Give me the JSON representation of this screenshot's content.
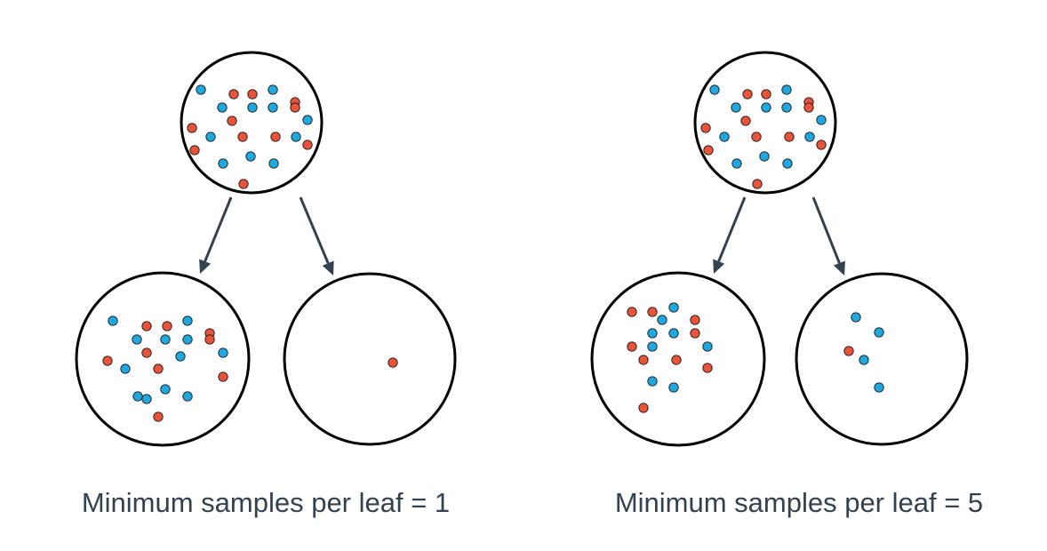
{
  "colors": {
    "class_red": "#e8533a",
    "class_blue": "#1fa8e0",
    "outline": "#000000",
    "edge": "#34414e",
    "caption_text": "#34414e"
  },
  "panels": [
    {
      "caption": "Minimum samples per leaf = 1",
      "root_counts": {
        "red": 11,
        "blue": 11
      },
      "leaves": [
        {
          "side": "left",
          "counts": {
            "red": 10,
            "blue": 11
          }
        },
        {
          "side": "right",
          "counts": {
            "red": 1,
            "blue": 0
          }
        }
      ]
    },
    {
      "caption": "Minimum samples per leaf = 5",
      "root_counts": {
        "red": 11,
        "blue": 11
      },
      "leaves": [
        {
          "side": "left",
          "counts": {
            "red": 10,
            "blue": 7
          }
        },
        {
          "side": "right",
          "counts": {
            "red": 1,
            "blue": 4
          }
        }
      ]
    }
  ]
}
